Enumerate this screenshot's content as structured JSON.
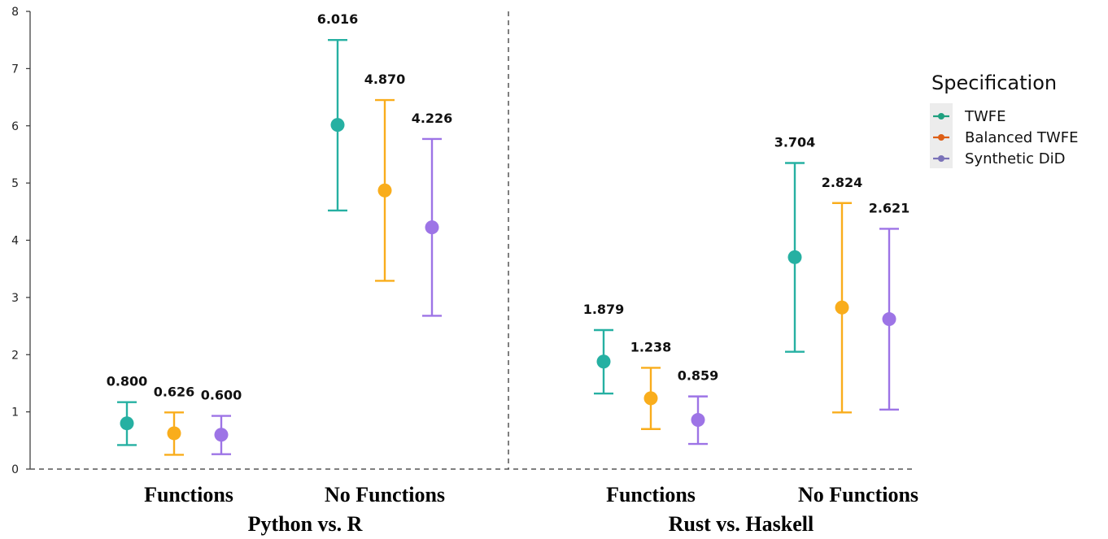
{
  "chart_data": {
    "type": "scatter",
    "subtype": "point-with-error-bars",
    "ylim": [
      0,
      8
    ],
    "yticks": [
      0,
      1,
      2,
      3,
      4,
      5,
      6,
      7,
      8
    ],
    "groups": [
      {
        "label": "Python vs. R",
        "categories": [
          {
            "label": "Functions",
            "points": [
              {
                "series": "TWFE",
                "value": 0.8,
                "label": "0.800",
                "lo": 0.42,
                "hi": 1.17
              },
              {
                "series": "Balanced TWFE",
                "value": 0.626,
                "label": "0.626",
                "lo": 0.25,
                "hi": 0.99
              },
              {
                "series": "Synthetic DiD",
                "value": 0.6,
                "label": "0.600",
                "lo": 0.26,
                "hi": 0.93
              }
            ]
          },
          {
            "label": "No Functions",
            "points": [
              {
                "series": "TWFE",
                "value": 6.016,
                "label": "6.016",
                "lo": 4.52,
                "hi": 7.5
              },
              {
                "series": "Balanced TWFE",
                "value": 4.87,
                "label": "4.870",
                "lo": 3.29,
                "hi": 6.45
              },
              {
                "series": "Synthetic DiD",
                "value": 4.226,
                "label": "4.226",
                "lo": 2.68,
                "hi": 5.77
              }
            ]
          }
        ]
      },
      {
        "label": "Rust vs. Haskell",
        "categories": [
          {
            "label": "Functions",
            "points": [
              {
                "series": "TWFE",
                "value": 1.879,
                "label": "1.879",
                "lo": 1.32,
                "hi": 2.43
              },
              {
                "series": "Balanced TWFE",
                "value": 1.238,
                "label": "1.238",
                "lo": 0.7,
                "hi": 1.77
              },
              {
                "series": "Synthetic DiD",
                "value": 0.859,
                "label": "0.859",
                "lo": 0.44,
                "hi": 1.27
              }
            ]
          },
          {
            "label": "No Functions",
            "points": [
              {
                "series": "TWFE",
                "value": 3.704,
                "label": "3.704",
                "lo": 2.05,
                "hi": 5.35
              },
              {
                "series": "Balanced TWFE",
                "value": 2.824,
                "label": "2.824",
                "lo": 0.99,
                "hi": 4.65
              },
              {
                "series": "Synthetic DiD",
                "value": 2.621,
                "label": "2.621",
                "lo": 1.04,
                "hi": 4.2
              }
            ]
          }
        ]
      }
    ],
    "legend": {
      "title": "Specification",
      "placement": "right",
      "items": [
        {
          "name": "TWFE",
          "color": "#26B0A2",
          "legend_color": "#1FA07F"
        },
        {
          "name": "Balanced TWFE",
          "color": "#F9AD1C",
          "legend_color": "#DD5F16"
        },
        {
          "name": "Synthetic DiD",
          "color": "#9D74E6",
          "legend_color": "#7A72B8"
        }
      ]
    },
    "grid": false,
    "baseline": "dashed at y=0",
    "group_separator": "dashed vertical line"
  }
}
